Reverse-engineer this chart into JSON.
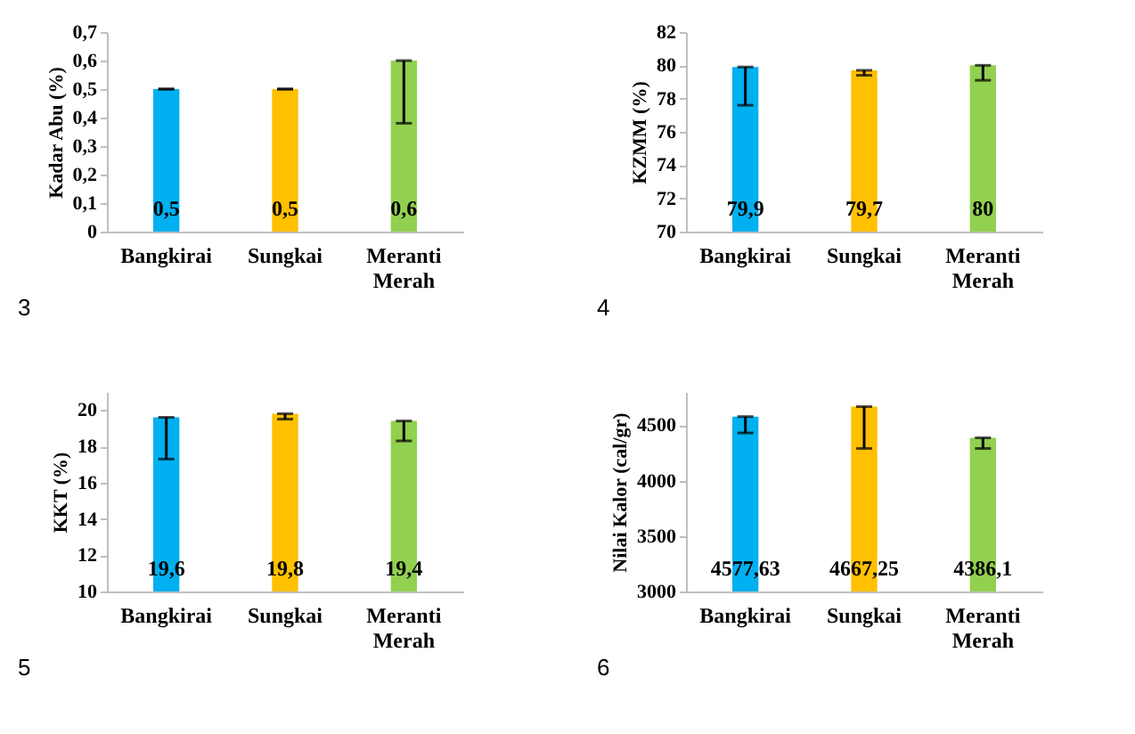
{
  "chart_data": [
    {
      "type": "bar",
      "ylabel": "Kadar Abu (%)",
      "categories": [
        "Bangkirai",
        "Sungkai",
        "Meranti Merah"
      ],
      "values": [
        0.5,
        0.5,
        0.6
      ],
      "colors": [
        "#00b0f0",
        "#ffc000",
        "#92d050"
      ],
      "errors": [
        [
          0.5,
          0.5
        ],
        [
          0.5,
          0.5
        ],
        [
          0.38,
          0.6
        ]
      ],
      "value_labels": [
        "0,5",
        "0,5",
        "0,6"
      ],
      "ylim": [
        0,
        0.7
      ],
      "yticks": [
        0,
        {
          "value": 0.1,
          "label": "0,1"
        },
        {
          "value": 0.2,
          "label": "0,2"
        },
        {
          "value": 0.3,
          "label": "0,3"
        },
        {
          "value": 0.4,
          "label": "0,4"
        },
        {
          "value": 0.5,
          "label": "0,5"
        },
        {
          "value": 0.6,
          "label": "0,6"
        },
        {
          "value": 0.7,
          "label": "0,7"
        }
      ],
      "annotations": [
        "3"
      ]
    },
    {
      "type": "bar",
      "ylabel": "KZMM (%)",
      "categories": [
        "Bangkirai",
        "Sungkai",
        "Meranti Merah"
      ],
      "values": [
        79.9,
        79.7,
        80
      ],
      "colors": [
        "#00b0f0",
        "#ffc000",
        "#92d050"
      ],
      "errors": [
        [
          77.6,
          79.9
        ],
        [
          79.4,
          79.7
        ],
        [
          79.1,
          80
        ]
      ],
      "value_labels": [
        "79,9",
        "79,7",
        "80"
      ],
      "ylim": [
        70,
        82
      ],
      "yticks": [
        70,
        72,
        74,
        76,
        78,
        80,
        82
      ],
      "annotations": [
        "4"
      ]
    },
    {
      "type": "bar",
      "ylabel": "KKT (%)",
      "categories": [
        "Bangkirai",
        "Sungkai",
        "Meranti Merah"
      ],
      "values": [
        19.6,
        19.8,
        19.4
      ],
      "colors": [
        "#00b0f0",
        "#ffc000",
        "#92d050"
      ],
      "errors": [
        [
          17.3,
          19.6
        ],
        [
          19.5,
          19.8
        ],
        [
          18.3,
          19.4
        ]
      ],
      "value_labels": [
        "19,6",
        "19,8",
        "19,4"
      ],
      "ylim": [
        10,
        21
      ],
      "yticks": [
        10,
        12,
        14,
        16,
        18,
        20
      ],
      "annotations": [
        "5"
      ]
    },
    {
      "type": "bar",
      "ylabel": "Nilai Kalor (cal/gr)",
      "categories": [
        "Bangkirai",
        "Sungkai",
        "Meranti Merah"
      ],
      "values": [
        4577.63,
        4667.25,
        4386.1
      ],
      "colors": [
        "#00b0f0",
        "#ffc000",
        "#92d050"
      ],
      "errors": [
        [
          4430,
          4577.63
        ],
        [
          4290,
          4667.25
        ],
        [
          4290,
          4386.1
        ]
      ],
      "value_labels": [
        "4577,63",
        "4667,25",
        "4386,1"
      ],
      "ylim": [
        3000,
        4800
      ],
      "yticks": [
        3000,
        3500,
        4000,
        4500
      ],
      "annotations": [
        "6"
      ]
    }
  ]
}
